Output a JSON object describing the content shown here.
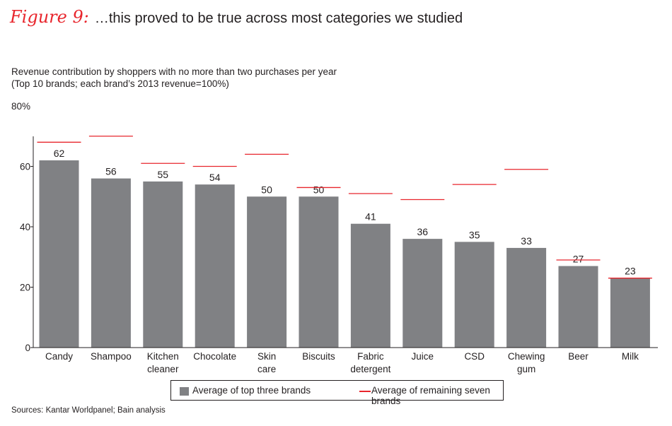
{
  "figure": {
    "label": "Figure 9:",
    "title": "…this proved to be true across most categories we studied"
  },
  "subtitle_line1": "Revenue contribution by shoppers with no more than two purchases per year",
  "subtitle_line2": "(Top 10 brands; each brand’s 2013 revenue=100%)",
  "sources": "Sources: Kantar Worldpanel; Bain analysis",
  "colors": {
    "bar": "#808184",
    "line": "#e8262d",
    "accent": "#e8262d"
  },
  "chart_data": {
    "type": "bar",
    "categories": [
      [
        "Candy"
      ],
      [
        "Shampoo"
      ],
      [
        "Kitchen",
        "cleaner"
      ],
      [
        "Chocolate"
      ],
      [
        "Skin",
        "care"
      ],
      [
        "Biscuits"
      ],
      [
        "Fabric",
        "detergent"
      ],
      [
        "Juice"
      ],
      [
        "CSD"
      ],
      [
        "Chewing",
        "gum"
      ],
      [
        "Beer"
      ],
      [
        "Milk"
      ]
    ],
    "series": [
      {
        "name": "Average of top three brands",
        "mark": "bar",
        "values": [
          62,
          56,
          55,
          54,
          50,
          50,
          41,
          36,
          35,
          33,
          27,
          23
        ]
      },
      {
        "name": "Average of remaining seven brands",
        "mark": "line",
        "values": [
          68,
          70,
          61,
          60,
          64,
          53,
          51,
          49,
          54,
          59,
          29,
          23
        ]
      }
    ],
    "y_ticks": [
      "0",
      "20",
      "40",
      "60",
      "80%"
    ],
    "ylim": [
      0,
      80
    ],
    "grid": false,
    "legend_position": "bottom"
  }
}
